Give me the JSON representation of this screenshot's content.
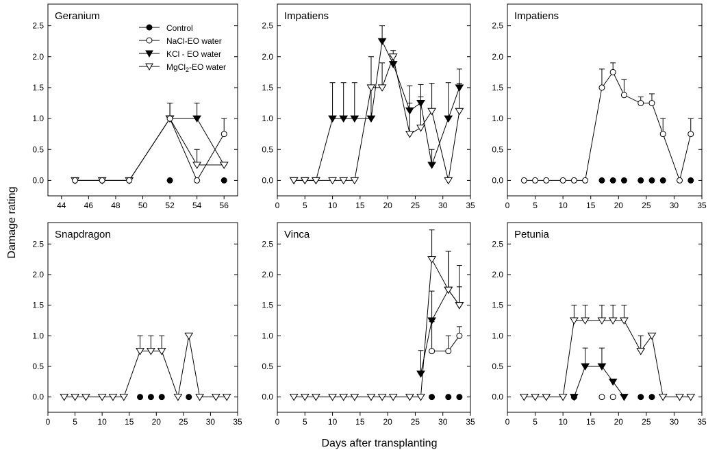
{
  "figure": {
    "ylabel": "Damage rating",
    "xlabel": "Days after transplanting"
  },
  "legend": {
    "entries": [
      {
        "label": "Control",
        "marker": "filled-circle"
      },
      {
        "label": "NaCl-EO water",
        "marker": "open-circle"
      },
      {
        "label": "KCl - EO water",
        "marker": "filled-triangle-down"
      },
      {
        "label": "MgCl2-EO water",
        "marker": "open-triangle-down"
      }
    ]
  },
  "chart_data": [
    {
      "type": "line",
      "title": "Geranium",
      "xlim": [
        43,
        57
      ],
      "ylim": [
        -0.25,
        2.85
      ],
      "xticks": [
        44,
        46,
        48,
        50,
        52,
        54,
        56
      ],
      "yticks": [
        0.0,
        0.5,
        1.0,
        1.5,
        2.0,
        2.5
      ],
      "yticklabels": [
        "0.0",
        "0.5",
        "1.0",
        "1.5",
        "2.0",
        "2.5"
      ],
      "legend": "top-left",
      "series": [
        {
          "name": "Control",
          "marker": "filled-circle",
          "connected": false,
          "x": [
            52,
            56
          ],
          "y": [
            0,
            0
          ],
          "err": [
            0,
            0
          ]
        },
        {
          "name": "KCl - EO water",
          "marker": "filled-triangle-down",
          "connected": true,
          "x": [
            52,
            54,
            56
          ],
          "y": [
            1.0,
            1.0,
            0.25
          ],
          "err": [
            0.25,
            0.25,
            0
          ]
        },
        {
          "name": "MgCl2-EO water",
          "marker": "open-triangle-down",
          "connected": true,
          "x": [
            45,
            47,
            49,
            52,
            54,
            56
          ],
          "y": [
            0,
            0,
            0,
            1.0,
            0.25,
            0.25
          ],
          "err": [
            0,
            0,
            0,
            0.25,
            0.25,
            0
          ]
        },
        {
          "name": "NaCl-EO water",
          "marker": "open-circle",
          "connected": true,
          "x": [
            45,
            47,
            49,
            52,
            54,
            56
          ],
          "y": [
            0,
            0,
            0,
            1.0,
            0,
            0.75
          ],
          "err": [
            0,
            0,
            0,
            0.25,
            0,
            0.25
          ]
        }
      ]
    },
    {
      "type": "line",
      "title": "Impatiens",
      "xlim": [
        0,
        35
      ],
      "ylim": [
        -0.25,
        2.85
      ],
      "xticks": [
        0,
        5,
        10,
        15,
        20,
        25,
        30,
        35
      ],
      "yticks": [
        0.0,
        0.5,
        1.0,
        1.5,
        2.0,
        2.5
      ],
      "yticklabels": [
        "0.0",
        "0.5",
        "1.0",
        "1.5",
        "2.0",
        "2.5"
      ],
      "series": [
        {
          "name": "KCl - EO water",
          "marker": "filled-triangle-down",
          "connected": true,
          "x": [
            3,
            5,
            7,
            10,
            12,
            14,
            17,
            19,
            21,
            24,
            26,
            28,
            31,
            33
          ],
          "y": [
            0,
            0,
            0,
            1.0,
            1.0,
            1.0,
            1.0,
            2.25,
            1.88,
            1.13,
            1.25,
            0.25,
            1.0,
            1.5
          ],
          "err": [
            0,
            0,
            0,
            0.58,
            0.58,
            0.58,
            0.5,
            0.25,
            0.12,
            0.4,
            0.3,
            0.25,
            0.58,
            0.3
          ]
        },
        {
          "name": "MgCl2-EO water",
          "marker": "open-triangle-down",
          "connected": true,
          "x": [
            3,
            5,
            7,
            10,
            12,
            14,
            17,
            19,
            21,
            24,
            26,
            28,
            31,
            33
          ],
          "y": [
            0,
            0,
            0,
            0,
            0,
            0,
            1.5,
            1.5,
            2.0,
            0.75,
            0.85,
            1.12,
            0,
            1.12
          ],
          "err": [
            0,
            0,
            0,
            0,
            0,
            0,
            0.5,
            0.4,
            0.1,
            0.5,
            0.5,
            0.45,
            0,
            0.45
          ]
        }
      ]
    },
    {
      "type": "line",
      "title": "Impatiens",
      "xlim": [
        0,
        35
      ],
      "ylim": [
        -0.25,
        2.85
      ],
      "xticks": [
        0,
        5,
        10,
        15,
        20,
        25,
        30,
        35
      ],
      "yticks": [
        0.0,
        0.5,
        1.0,
        1.5,
        2.0,
        2.5
      ],
      "yticklabels": [
        "0.0",
        "0.5",
        "1.0",
        "1.5",
        "2.0",
        "2.5"
      ],
      "series": [
        {
          "name": "Control",
          "marker": "filled-circle",
          "connected": false,
          "x": [
            17,
            19,
            21,
            24,
            26,
            28,
            33
          ],
          "y": [
            0,
            0,
            0,
            0,
            0,
            0,
            0
          ],
          "err": [
            0,
            0,
            0,
            0,
            0,
            0,
            0
          ]
        },
        {
          "name": "NaCl-EO water",
          "marker": "open-circle",
          "connected": true,
          "x": [
            3,
            5,
            7,
            10,
            12,
            14,
            17,
            19,
            21,
            24,
            26,
            28,
            31,
            33
          ],
          "y": [
            0,
            0,
            0,
            0,
            0,
            0,
            1.5,
            1.75,
            1.38,
            1.25,
            1.25,
            0.75,
            0,
            0.75
          ],
          "err": [
            0,
            0,
            0,
            0,
            0,
            0,
            0.3,
            0.15,
            0.25,
            0.1,
            0.15,
            0.25,
            0,
            0.25
          ]
        }
      ]
    },
    {
      "type": "line",
      "title": "Snapdragon",
      "xlim": [
        0,
        35
      ],
      "ylim": [
        -0.25,
        2.85
      ],
      "xticks": [
        0,
        5,
        10,
        15,
        20,
        25,
        30,
        35
      ],
      "yticks": [
        0.0,
        0.5,
        1.0,
        1.5,
        2.0,
        2.5
      ],
      "yticklabels": [
        "0.0",
        "0.5",
        "1.0",
        "1.5",
        "2.0",
        "2.5"
      ],
      "series": [
        {
          "name": "Control",
          "marker": "filled-circle",
          "connected": false,
          "x": [
            17,
            19,
            21,
            26
          ],
          "y": [
            0,
            0,
            0,
            0
          ],
          "err": [
            0,
            0,
            0,
            0
          ]
        },
        {
          "name": "MgCl2-EO water",
          "marker": "open-triangle-down",
          "connected": true,
          "x": [
            3,
            5,
            7,
            10,
            12,
            14,
            17,
            19,
            21,
            24,
            26,
            28,
            31,
            33
          ],
          "y": [
            0,
            0,
            0,
            0,
            0,
            0,
            0.75,
            0.75,
            0.75,
            0,
            1.0,
            0,
            0,
            0
          ],
          "err": [
            0,
            0,
            0,
            0,
            0,
            0,
            0.25,
            0.25,
            0.25,
            0,
            0,
            0,
            0,
            0
          ]
        }
      ]
    },
    {
      "type": "line",
      "title": "Vinca",
      "xlim": [
        0,
        35
      ],
      "ylim": [
        -0.25,
        2.85
      ],
      "xticks": [
        0,
        5,
        10,
        15,
        20,
        25,
        30,
        35
      ],
      "yticks": [
        0.0,
        0.5,
        1.0,
        1.5,
        2.0,
        2.5
      ],
      "yticklabels": [
        "0.0",
        "0.5",
        "1.0",
        "1.5",
        "2.0",
        "2.5"
      ],
      "series": [
        {
          "name": "Control",
          "marker": "filled-circle",
          "connected": false,
          "x": [
            28,
            31,
            33
          ],
          "y": [
            0,
            0,
            0
          ],
          "err": [
            0,
            0,
            0
          ]
        },
        {
          "name": "KCl - EO water",
          "marker": "filled-triangle-down",
          "connected": true,
          "x": [
            26,
            28,
            31,
            33
          ],
          "y": [
            0.38,
            1.25,
            1.75,
            1.5
          ],
          "err": [
            0.38,
            0.48,
            0.63,
            0.3
          ]
        },
        {
          "name": "NaCl-EO water",
          "marker": "open-circle",
          "connected": true,
          "x": [
            28,
            31,
            33
          ],
          "y": [
            0.75,
            0.75,
            1.0
          ],
          "err": [
            0.48,
            0.25,
            0.15
          ]
        },
        {
          "name": "MgCl2-EO water",
          "marker": "open-triangle-down",
          "connected": true,
          "x": [
            3,
            5,
            7,
            10,
            12,
            14,
            17,
            19,
            21,
            24,
            26,
            28,
            31,
            33
          ],
          "y": [
            0,
            0,
            0,
            0,
            0,
            0,
            0,
            0,
            0,
            0,
            0,
            2.25,
            1.75,
            1.5
          ],
          "err": [
            0,
            0,
            0,
            0,
            0,
            0,
            0,
            0,
            0,
            0,
            0,
            0.48,
            0.63,
            0.65
          ]
        }
      ]
    },
    {
      "type": "line",
      "title": "Petunia",
      "xlim": [
        0,
        35
      ],
      "ylim": [
        -0.25,
        2.85
      ],
      "xticks": [
        0,
        5,
        10,
        15,
        20,
        25,
        30,
        35
      ],
      "yticks": [
        0.0,
        0.5,
        1.0,
        1.5,
        2.0,
        2.5
      ],
      "yticklabels": [
        "0.0",
        "0.5",
        "1.0",
        "1.5",
        "2.0",
        "2.5"
      ],
      "series": [
        {
          "name": "Control",
          "marker": "filled-circle",
          "connected": false,
          "x": [
            12,
            24,
            26
          ],
          "y": [
            0,
            0,
            0
          ],
          "err": [
            0,
            0,
            0
          ]
        },
        {
          "name": "KCl - EO water",
          "marker": "filled-triangle-down",
          "connected": true,
          "x": [
            12,
            14,
            17,
            19,
            21
          ],
          "y": [
            0,
            0.5,
            0.5,
            0.25,
            0
          ],
          "err": [
            0,
            0.3,
            0.3,
            0,
            0
          ]
        },
        {
          "name": "NaCl-EO water",
          "marker": "open-circle",
          "connected": false,
          "x": [
            17,
            19
          ],
          "y": [
            0,
            0
          ],
          "err": [
            0,
            0
          ]
        },
        {
          "name": "MgCl2-EO water",
          "marker": "open-triangle-down",
          "connected": true,
          "x": [
            3,
            5,
            7,
            10,
            12,
            14,
            17,
            19,
            21,
            24,
            26,
            28,
            31,
            33
          ],
          "y": [
            0,
            0,
            0,
            0,
            1.25,
            1.25,
            1.25,
            1.25,
            1.25,
            0.75,
            1.0,
            0,
            0,
            0
          ],
          "err": [
            0,
            0,
            0,
            0,
            0.25,
            0.25,
            0.25,
            0.25,
            0.25,
            0.25,
            0,
            0,
            0,
            0
          ]
        }
      ]
    }
  ]
}
